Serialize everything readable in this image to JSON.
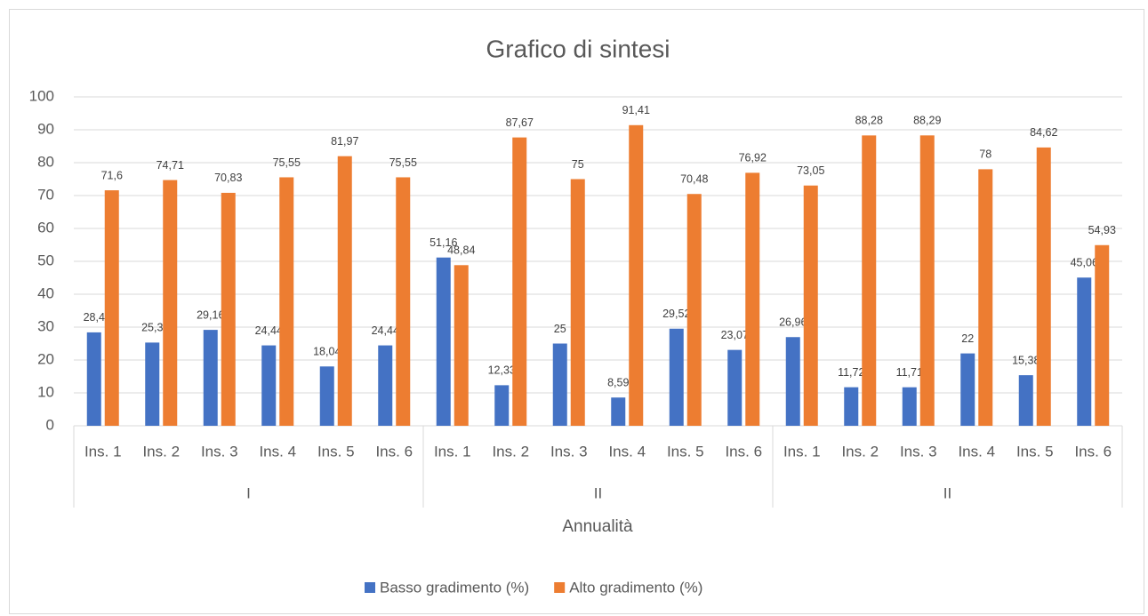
{
  "chart_data": {
    "type": "bar",
    "title": "Grafico di sintesi",
    "x_label": "Annualità",
    "categories": [
      "Ins. 1",
      "Ins. 2",
      "Ins. 3",
      "Ins. 4",
      "Ins. 5",
      "Ins. 6",
      "Ins. 1",
      "Ins. 2",
      "Ins. 3",
      "Ins. 4",
      "Ins. 5",
      "Ins. 6",
      "Ins. 1",
      "Ins. 2",
      "Ins. 3",
      "Ins. 4",
      "Ins. 5",
      "Ins. 6"
    ],
    "groups": [
      "I",
      "II",
      "II"
    ],
    "series": [
      {
        "name": "Basso gradimento (%)",
        "color": "#4472c4",
        "values": [
          28.4,
          25.3,
          29.16,
          24.44,
          18.04,
          24.44,
          51.16,
          12.33,
          25,
          8.59,
          29.52,
          23.07,
          26.96,
          11.72,
          11.71,
          22,
          15.38,
          45.06
        ],
        "value_labels": [
          "28,4",
          "25,3",
          "29,16",
          "24,44",
          "18,04",
          "24,44",
          "51,16",
          "12,33",
          "25",
          "8,59",
          "29,52",
          "23,07",
          "26,96",
          "11,72",
          "11,71",
          "22",
          "15,38",
          "45,06"
        ]
      },
      {
        "name": "Alto gradimento (%)",
        "color": "#ed7d31",
        "values": [
          71.6,
          74.71,
          70.83,
          75.55,
          81.97,
          75.55,
          48.84,
          87.67,
          75,
          91.41,
          70.48,
          76.92,
          73.05,
          88.28,
          88.29,
          78,
          84.62,
          54.93
        ],
        "value_labels": [
          "71,6",
          "74,71",
          "70,83",
          "75,55",
          "81,97",
          "75,55",
          "48,84",
          "87,67",
          "75",
          "91,41",
          "70,48",
          "76,92",
          "73,05",
          "88,28",
          "88,29",
          "78",
          "84,62",
          "54,93"
        ]
      }
    ],
    "ylim": [
      0,
      100
    ],
    "yticks": [
      0,
      10,
      20,
      30,
      40,
      50,
      60,
      70,
      80,
      90,
      100
    ],
    "grid": true,
    "legend": "bottom"
  }
}
